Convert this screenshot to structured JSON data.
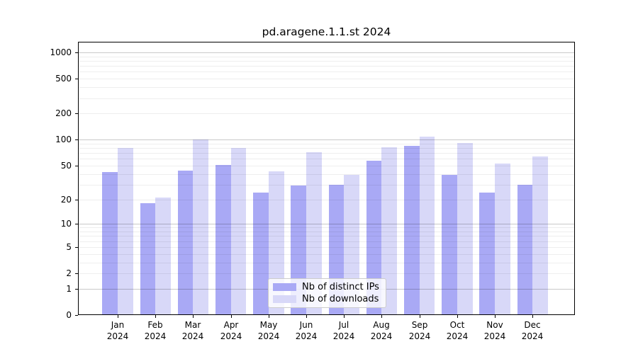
{
  "chart_data": {
    "type": "bar",
    "title": "pd.aragene.1.1.st 2024",
    "x_labels": [
      {
        "month": "Jan",
        "year": "2024"
      },
      {
        "month": "Feb",
        "year": "2024"
      },
      {
        "month": "Mar",
        "year": "2024"
      },
      {
        "month": "Apr",
        "year": "2024"
      },
      {
        "month": "May",
        "year": "2024"
      },
      {
        "month": "Jun",
        "year": "2024"
      },
      {
        "month": "Jul",
        "year": "2024"
      },
      {
        "month": "Aug",
        "year": "2024"
      },
      {
        "month": "Sep",
        "year": "2024"
      },
      {
        "month": "Oct",
        "year": "2024"
      },
      {
        "month": "Nov",
        "year": "2024"
      },
      {
        "month": "Dec",
        "year": "2024"
      }
    ],
    "series": [
      {
        "name": "Nb of distinct IPs",
        "color": "#a9a9f5",
        "values": [
          42,
          18,
          44,
          51,
          24,
          29,
          30,
          57,
          85,
          39,
          24,
          30
        ]
      },
      {
        "name": "Nb of downloads",
        "color": "#d8d8f8",
        "values": [
          80,
          21,
          100,
          80,
          43,
          72,
          39,
          82,
          108,
          91,
          53,
          64
        ]
      }
    ],
    "y_axis": {
      "scale": "log10(value+1)",
      "tick_labels": [
        0,
        1,
        2,
        5,
        10,
        20,
        50,
        100,
        200,
        500,
        1000
      ],
      "range": [
        0,
        1300
      ]
    },
    "grid": {
      "on": true,
      "major_values": [
        1,
        10,
        100,
        1000
      ],
      "minor_values": [
        2,
        3,
        4,
        5,
        6,
        7,
        8,
        9,
        20,
        30,
        40,
        50,
        60,
        70,
        80,
        90,
        200,
        300,
        400,
        500,
        600,
        700,
        800,
        900
      ]
    },
    "legend_position": "bottom-center"
  },
  "colors": {
    "background": "#ffffff",
    "axis": "#000000",
    "grid_major": "#c9c9c9",
    "grid_minor": "#efefef"
  }
}
